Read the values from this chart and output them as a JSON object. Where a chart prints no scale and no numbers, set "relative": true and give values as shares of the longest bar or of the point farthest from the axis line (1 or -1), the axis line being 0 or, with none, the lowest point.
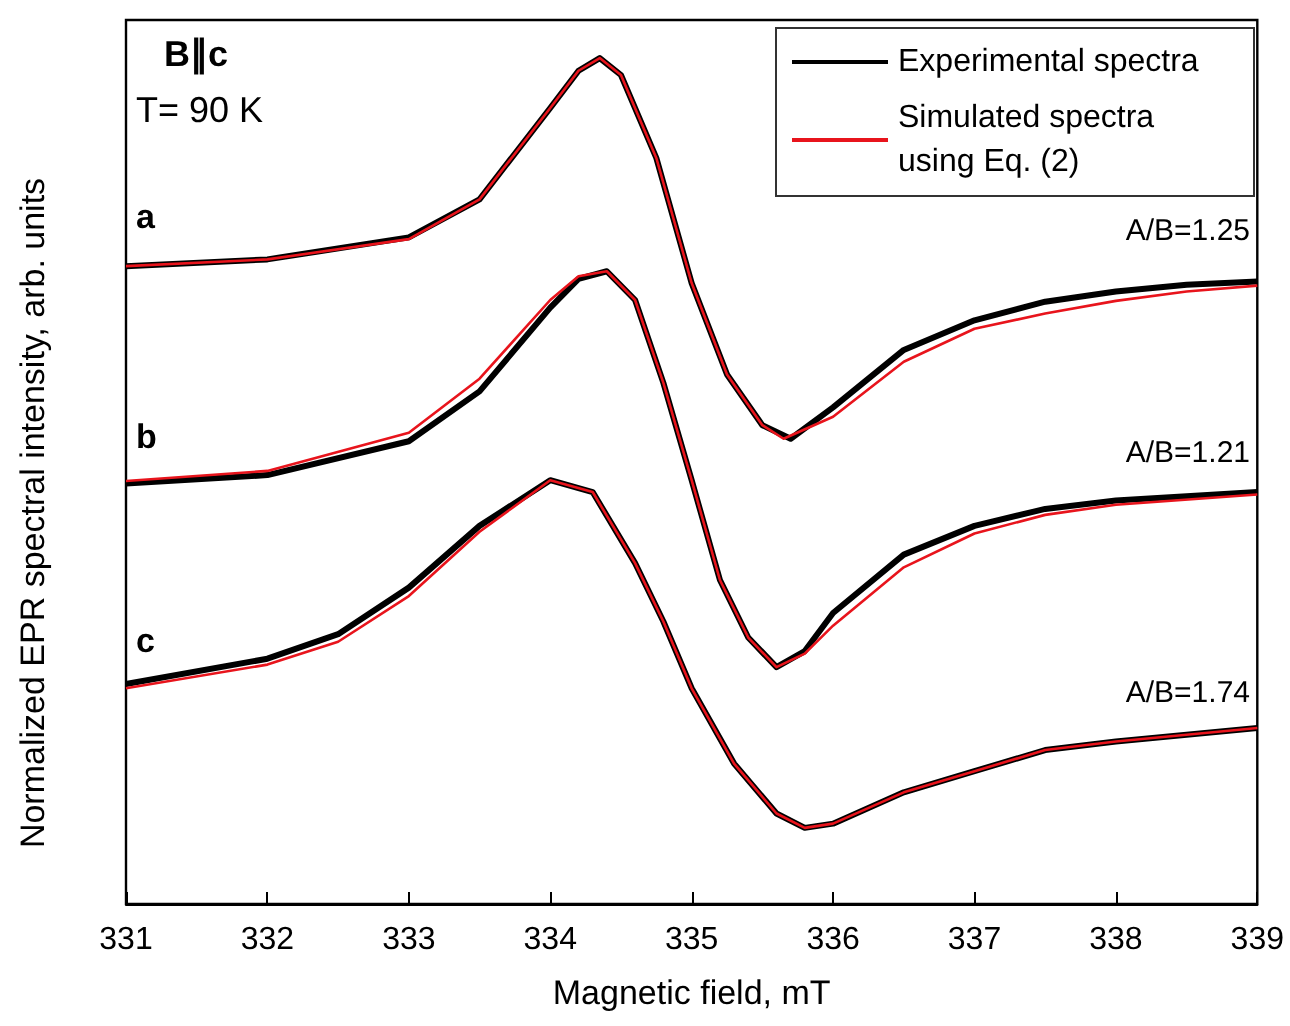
{
  "chart_data": {
    "type": "line",
    "relative": true,
    "xlabel": "Magnetic field, mT",
    "ylabel": "Normalized EPR spectral intensity, arb. units",
    "xlim": [
      331,
      339
    ],
    "xticks": [
      331,
      332,
      333,
      334,
      335,
      336,
      337,
      338,
      339
    ],
    "legend": "top right",
    "grid": false,
    "marker": "none",
    "line_style": "solid",
    "annotations": [
      "B∥c",
      "T= 90 K",
      "a",
      "b",
      "c",
      "A/B=1.25",
      "A/B=1.21",
      "A/B=1.74"
    ],
    "series": [
      {
        "name": "Experimental spectra",
        "color": "#000000",
        "x": [
          331,
          332,
          333,
          333.5,
          334,
          334.2,
          334.35,
          334.5,
          334.75,
          335,
          335.25,
          335.5,
          335.7,
          336,
          336.5,
          337,
          337.5,
          338,
          338.5,
          339
        ],
        "values": [
          0.754,
          0.762,
          0.788,
          0.833,
          0.941,
          0.985,
          1.0,
          0.98,
          0.882,
          0.734,
          0.626,
          0.566,
          0.55,
          0.587,
          0.655,
          0.69,
          0.712,
          0.724,
          0.732,
          0.736
        ]
      },
      {
        "name": "Simulated spectra using Eq. (2)",
        "color": "#e8141c",
        "x": [
          331,
          332,
          333,
          333.5,
          334,
          334.2,
          334.35,
          334.5,
          334.75,
          335,
          335.25,
          335.5,
          335.65,
          336,
          336.5,
          337,
          337.5,
          338,
          338.5,
          339
        ],
        "values": [
          0.754,
          0.762,
          0.786,
          0.833,
          0.941,
          0.985,
          1.0,
          0.98,
          0.882,
          0.734,
          0.626,
          0.566,
          0.55,
          0.576,
          0.641,
          0.68,
          0.698,
          0.713,
          0.724,
          0.731
        ]
      },
      {
        "color": "#000000",
        "x": [
          331,
          332,
          333,
          333.5,
          334,
          334.2,
          334.4,
          334.6,
          334.8,
          335,
          335.2,
          335.4,
          335.6,
          335.8,
          336,
          336.5,
          337,
          337.5,
          338,
          339
        ],
        "values": [
          0.497,
          0.507,
          0.547,
          0.606,
          0.705,
          0.739,
          0.748,
          0.714,
          0.616,
          0.501,
          0.383,
          0.315,
          0.28,
          0.299,
          0.344,
          0.413,
          0.447,
          0.467,
          0.477,
          0.487
        ]
      },
      {
        "color": "#e8141c",
        "x": [
          331,
          332,
          333,
          333.5,
          334,
          334.2,
          334.4,
          334.6,
          334.8,
          335,
          335.2,
          335.4,
          335.6,
          335.8,
          336,
          336.5,
          337,
          337.5,
          338,
          339
        ],
        "values": [
          0.5,
          0.512,
          0.557,
          0.621,
          0.714,
          0.742,
          0.748,
          0.714,
          0.616,
          0.501,
          0.383,
          0.315,
          0.28,
          0.296,
          0.329,
          0.398,
          0.438,
          0.46,
          0.472,
          0.484
        ]
      },
      {
        "color": "#000000",
        "x": [
          331,
          332,
          332.5,
          333,
          333.5,
          334,
          334.3,
          334.6,
          334.8,
          335,
          335.3,
          335.6,
          335.8,
          336,
          336.5,
          337,
          337.5,
          338,
          339
        ],
        "values": [
          0.26,
          0.29,
          0.319,
          0.374,
          0.447,
          0.501,
          0.487,
          0.403,
          0.334,
          0.255,
          0.166,
          0.107,
          0.09,
          0.095,
          0.132,
          0.157,
          0.182,
          0.192,
          0.208
        ]
      },
      {
        "color": "#e8141c",
        "x": [
          331,
          332,
          332.5,
          333,
          333.5,
          334,
          334.3,
          334.6,
          334.8,
          335,
          335.3,
          335.6,
          335.8,
          336,
          336.5,
          337,
          337.5,
          338,
          339
        ],
        "values": [
          0.255,
          0.283,
          0.31,
          0.364,
          0.44,
          0.501,
          0.487,
          0.403,
          0.334,
          0.255,
          0.166,
          0.107,
          0.09,
          0.095,
          0.132,
          0.157,
          0.182,
          0.192,
          0.208
        ]
      }
    ]
  }
}
